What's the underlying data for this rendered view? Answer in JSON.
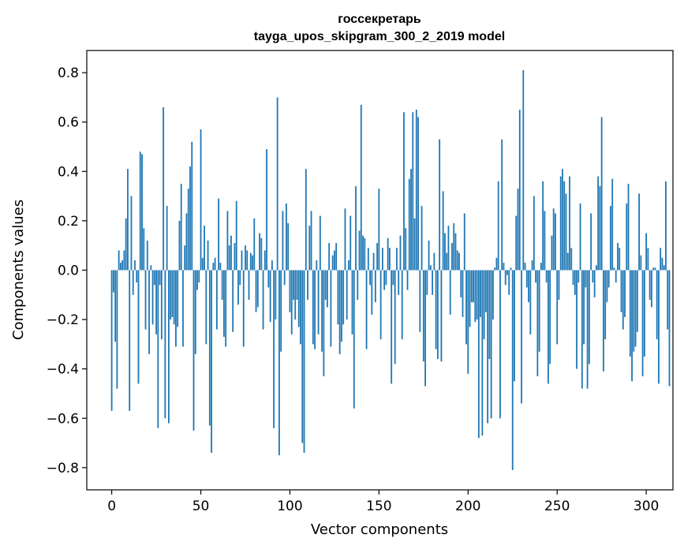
{
  "chart_data": {
    "type": "bar",
    "title": "госсекретарь",
    "subtitle": "tayga_upos_skipgram_300_2_2019 model",
    "xlabel": "Vector components",
    "ylabel": "Components values",
    "xlim": [
      -14,
      315
    ],
    "ylim": [
      -0.89,
      0.89
    ],
    "xticks": [
      0,
      50,
      100,
      150,
      200,
      250,
      300
    ],
    "xtick_labels": [
      "0",
      "50",
      "100",
      "150",
      "200",
      "250",
      "300"
    ],
    "yticks": [
      -0.8,
      -0.6,
      -0.4,
      -0.2,
      0.0,
      0.2,
      0.4,
      0.6,
      0.8
    ],
    "ytick_labels": [
      "−0.8",
      "−0.6",
      "−0.4",
      "−0.2",
      "0.0",
      "0.2",
      "0.4",
      "0.6",
      "0.8"
    ],
    "bar_color": "#1f77b4",
    "values": [
      -0.57,
      -0.09,
      -0.29,
      -0.48,
      0.08,
      0.03,
      0.04,
      0.08,
      0.21,
      0.41,
      -0.57,
      0.3,
      -0.1,
      0.04,
      -0.05,
      -0.46,
      0.48,
      0.47,
      0.17,
      -0.24,
      0.12,
      -0.34,
      0.02,
      -0.22,
      -0.06,
      -0.26,
      -0.64,
      -0.06,
      -0.28,
      0.66,
      -0.6,
      0.26,
      -0.62,
      -0.2,
      -0.19,
      -0.22,
      -0.31,
      -0.23,
      0.2,
      0.35,
      -0.31,
      0.1,
      0.23,
      0.33,
      0.42,
      0.52,
      -0.65,
      -0.34,
      -0.08,
      -0.05,
      0.57,
      0.05,
      0.18,
      -0.3,
      0.12,
      -0.63,
      -0.74,
      0.03,
      0.05,
      -0.24,
      0.29,
      0.03,
      -0.12,
      -0.27,
      -0.31,
      0.24,
      0.1,
      0.14,
      -0.25,
      0.11,
      0.28,
      -0.14,
      -0.06,
      0.08,
      -0.31,
      0.1,
      0.08,
      -0.12,
      0.07,
      0.06,
      0.21,
      -0.17,
      -0.15,
      0.15,
      0.13,
      -0.24,
      0.08,
      0.49,
      -0.07,
      -0.21,
      0.04,
      -0.64,
      -0.2,
      0.7,
      -0.75,
      -0.33,
      0.24,
      -0.06,
      0.27,
      0.19,
      -0.17,
      -0.26,
      -0.12,
      -0.2,
      -0.12,
      -0.23,
      -0.3,
      -0.7,
      -0.74,
      0.41,
      -0.12,
      0.18,
      0.24,
      -0.3,
      -0.32,
      0.04,
      -0.26,
      0.22,
      -0.33,
      -0.43,
      -0.12,
      -0.15,
      0.11,
      -0.31,
      0.06,
      0.08,
      0.11,
      -0.22,
      -0.34,
      -0.29,
      -0.22,
      0.25,
      -0.2,
      0.04,
      0.22,
      -0.26,
      -0.56,
      0.34,
      -0.12,
      0.16,
      0.67,
      0.14,
      0.13,
      -0.32,
      0.09,
      -0.06,
      -0.18,
      0.07,
      -0.13,
      0.11,
      0.33,
      -0.28,
      0.09,
      -0.08,
      -0.06,
      0.13,
      0.09,
      -0.46,
      -0.06,
      -0.38,
      0.09,
      -0.1,
      0.14,
      -0.28,
      0.64,
      0.17,
      -0.08,
      0.37,
      0.41,
      0.64,
      0.21,
      0.65,
      0.62,
      -0.25,
      0.26,
      -0.37,
      -0.47,
      -0.1,
      0.12,
      0.02,
      -0.1,
      0.07,
      -0.32,
      -0.36,
      0.53,
      -0.37,
      0.32,
      0.15,
      0.07,
      0.18,
      -0.18,
      0.11,
      0.19,
      0.15,
      0.08,
      0.07,
      -0.11,
      -0.19,
      0.23,
      -0.3,
      -0.42,
      -0.23,
      -0.13,
      -0.13,
      -0.21,
      -0.2,
      -0.68,
      -0.19,
      -0.67,
      -0.28,
      -0.17,
      -0.62,
      -0.36,
      -0.6,
      -0.2,
      0.01,
      0.05,
      0.36,
      -0.6,
      0.53,
      0.03,
      -0.06,
      -0.02,
      -0.1,
      0.01,
      -0.81,
      -0.45,
      0.22,
      0.33,
      0.65,
      -0.54,
      0.81,
      0.03,
      -0.07,
      -0.13,
      -0.26,
      0.04,
      0.3,
      -0.05,
      -0.43,
      -0.33,
      0.03,
      0.36,
      0.24,
      -0.05,
      -0.46,
      -0.38,
      0.14,
      0.25,
      0.23,
      -0.3,
      -0.12,
      0.38,
      0.41,
      0.36,
      0.31,
      0.07,
      0.38,
      0.09,
      -0.06,
      -0.1,
      -0.4,
      -0.05,
      0.27,
      -0.48,
      -0.3,
      -0.07,
      -0.48,
      -0.38,
      0.23,
      -0.05,
      -0.11,
      0.02,
      0.38,
      0.34,
      0.62,
      -0.41,
      -0.28,
      -0.13,
      -0.07,
      0.26,
      0.37,
      0.01,
      -0.05,
      0.11,
      0.09,
      -0.17,
      -0.24,
      -0.19,
      0.27,
      0.35,
      -0.35,
      -0.45,
      -0.33,
      -0.31,
      -0.25,
      0.31,
      0.06,
      -0.43,
      -0.35,
      0.15,
      0.09,
      -0.12,
      -0.15,
      0.01,
      0.01,
      -0.28,
      -0.46,
      0.09,
      0.05,
      0.02,
      0.36,
      -0.24,
      -0.47
    ]
  }
}
